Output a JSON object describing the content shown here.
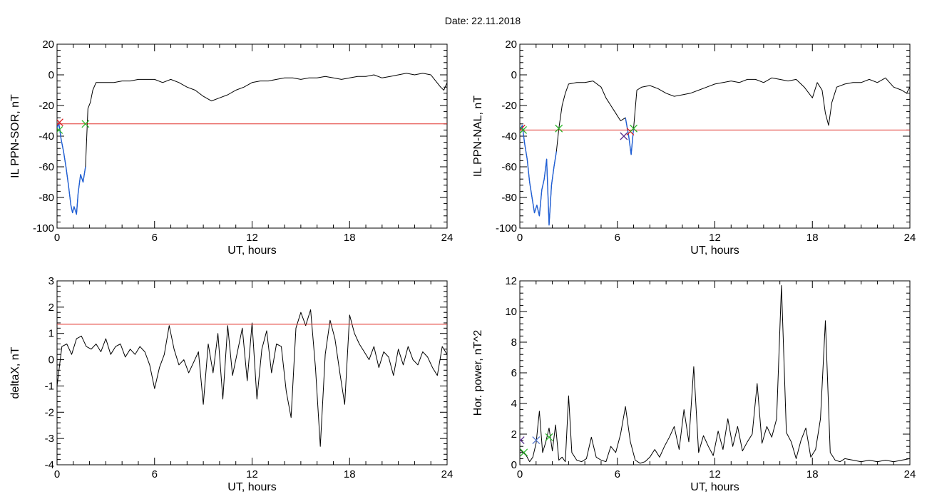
{
  "title": "Date:  22.11.2018",
  "colors": {
    "trace": "#000000",
    "highlight": "#1f5fd6",
    "threshold": "#e0302a",
    "marker_green": "#2db82d",
    "marker_red": "#d81e1e",
    "marker_blue": "#5577cc",
    "marker_purple": "#5a2d8c"
  },
  "chart_data": [
    {
      "type": "line",
      "ylabel": "IL PPN-SOR, nT",
      "xlabel": "UT, hours",
      "xlim": [
        0,
        24
      ],
      "ylim": [
        -100,
        20
      ],
      "xticks": [
        0,
        6,
        12,
        18,
        24
      ],
      "yticks": [
        -100,
        -80,
        -60,
        -40,
        -20,
        0,
        20
      ],
      "threshold": -32,
      "series": [
        {
          "role": "trace",
          "x": [
            0,
            0.1,
            0.25,
            0.4,
            0.55,
            0.7,
            0.85,
            0.95,
            1.05,
            1.2,
            1.3,
            1.45,
            1.6,
            1.75,
            1.9,
            2.05,
            2.2,
            2.4,
            2.6,
            3,
            3.5,
            4,
            4.5,
            5,
            5.5,
            6,
            6.5,
            7,
            7.5,
            8,
            8.5,
            9,
            9.5,
            10,
            10.5,
            11,
            11.5,
            12,
            12.5,
            13,
            13.5,
            14,
            14.5,
            15,
            15.5,
            16,
            16.5,
            17,
            17.5,
            18,
            18.5,
            19,
            19.5,
            20,
            20.5,
            21,
            21.5,
            22,
            22.5,
            23,
            23.3,
            23.6,
            23.8,
            24
          ],
          "y": [
            -35,
            -31,
            -42,
            -50,
            -60,
            -72,
            -85,
            -90,
            -86,
            -91,
            -77,
            -65,
            -70,
            -60,
            -22,
            -18,
            -10,
            -5,
            -5,
            -5,
            -5,
            -4,
            -4,
            -3,
            -3,
            -3,
            -5,
            -3,
            -5,
            -8,
            -10,
            -14,
            -17,
            -15,
            -13,
            -10,
            -8,
            -5,
            -4,
            -4,
            -3,
            -2,
            -2,
            -3,
            -2,
            -2,
            -1,
            -2,
            -3,
            -2,
            -1,
            -1,
            0,
            -2,
            -1,
            0,
            1,
            0,
            1,
            0,
            -4,
            -8,
            -10,
            -5
          ]
        },
        {
          "role": "highlight",
          "x": [
            0,
            0.1,
            0.25,
            0.4,
            0.55,
            0.7,
            0.85,
            0.95,
            1.05,
            1.2,
            1.3,
            1.45,
            1.6,
            1.75
          ],
          "y": [
            -35,
            -31,
            -42,
            -50,
            -60,
            -72,
            -85,
            -90,
            -86,
            -91,
            -77,
            -65,
            -70,
            -60
          ]
        }
      ],
      "markers": [
        {
          "x": 0.15,
          "y": -31,
          "color": "red"
        },
        {
          "x": 0.12,
          "y": -36,
          "color": "green"
        },
        {
          "x": 1.75,
          "y": -32,
          "color": "green"
        }
      ]
    },
    {
      "type": "line",
      "ylabel": "IL PPN-NAL, nT",
      "xlabel": "UT, hours",
      "xlim": [
        0,
        24
      ],
      "ylim": [
        -100,
        20
      ],
      "xticks": [
        0,
        6,
        12,
        18,
        24
      ],
      "yticks": [
        -100,
        -80,
        -60,
        -40,
        -20,
        0,
        20
      ],
      "threshold": -36,
      "series": [
        {
          "role": "trace",
          "x": [
            0,
            0.15,
            0.3,
            0.45,
            0.6,
            0.75,
            0.9,
            1.05,
            1.2,
            1.35,
            1.5,
            1.65,
            1.8,
            1.95,
            2.1,
            2.25,
            2.4,
            2.6,
            2.8,
            3,
            3.5,
            4,
            4.5,
            5,
            5.3,
            5.6,
            5.9,
            6.2,
            6.5,
            6.7,
            6.85,
            7,
            7.2,
            7.5,
            8,
            8.5,
            9,
            9.5,
            10,
            10.5,
            11,
            11.5,
            12,
            12.5,
            13,
            13.5,
            14,
            14.5,
            15,
            15.5,
            16,
            16.5,
            17,
            17.5,
            18,
            18.3,
            18.6,
            18.8,
            19,
            19.2,
            19.5,
            20,
            20.5,
            21,
            21.5,
            22,
            22.5,
            23,
            23.5,
            23.8,
            24
          ],
          "y": [
            -36,
            -33,
            -45,
            -55,
            -70,
            -80,
            -90,
            -85,
            -92,
            -75,
            -68,
            -55,
            -98,
            -72,
            -60,
            -50,
            -35,
            -20,
            -12,
            -6,
            -5,
            -5,
            -4,
            -8,
            -15,
            -20,
            -25,
            -30,
            -28,
            -40,
            -52,
            -35,
            -10,
            -8,
            -7,
            -9,
            -12,
            -14,
            -13,
            -12,
            -10,
            -8,
            -6,
            -5,
            -4,
            -5,
            -3,
            -3,
            -5,
            -2,
            -3,
            -4,
            -3,
            -8,
            -15,
            -5,
            -10,
            -25,
            -33,
            -18,
            -8,
            -6,
            -5,
            -5,
            -3,
            -5,
            -2,
            -8,
            -10,
            -12,
            -8
          ]
        },
        {
          "role": "highlight",
          "x": [
            0,
            0.15,
            0.3,
            0.45,
            0.6,
            0.75,
            0.9,
            1.05,
            1.2,
            1.35,
            1.5,
            1.65,
            1.8,
            1.95,
            2.1,
            2.25
          ],
          "y": [
            -36,
            -33,
            -45,
            -55,
            -70,
            -80,
            -90,
            -85,
            -92,
            -75,
            -68,
            -55,
            -98,
            -72,
            -60,
            -50
          ]
        },
        {
          "role": "highlight",
          "x": [
            6.5,
            6.7,
            6.85,
            7
          ],
          "y": [
            -28,
            -40,
            -52,
            -35
          ]
        }
      ],
      "markers": [
        {
          "x": 0.1,
          "y": -35,
          "color": "red"
        },
        {
          "x": 0.2,
          "y": -36,
          "color": "green"
        },
        {
          "x": 2.4,
          "y": -35,
          "color": "green"
        },
        {
          "x": 6.4,
          "y": -40,
          "color": "purple"
        },
        {
          "x": 6.8,
          "y": -37,
          "color": "red"
        },
        {
          "x": 7.0,
          "y": -35,
          "color": "green"
        }
      ]
    },
    {
      "type": "line",
      "ylabel": "deltaX, nT",
      "xlabel": "UT, hours",
      "xlim": [
        0,
        24
      ],
      "ylim": [
        -4,
        3
      ],
      "xticks": [
        0,
        6,
        12,
        18,
        24
      ],
      "yticks": [
        -4,
        -3,
        -2,
        -1,
        0,
        1,
        2,
        3
      ],
      "threshold": 1.35,
      "series": [
        {
          "role": "trace",
          "x": [
            0,
            0.3,
            0.6,
            0.9,
            1.2,
            1.5,
            1.8,
            2.1,
            2.4,
            2.7,
            3,
            3.3,
            3.6,
            3.9,
            4.2,
            4.5,
            4.8,
            5.1,
            5.4,
            5.7,
            6,
            6.3,
            6.6,
            6.9,
            7.2,
            7.5,
            7.8,
            8.1,
            8.4,
            8.7,
            9,
            9.3,
            9.6,
            9.9,
            10.2,
            10.5,
            10.8,
            11.1,
            11.4,
            11.7,
            12,
            12.3,
            12.6,
            12.9,
            13.2,
            13.5,
            13.8,
            14.1,
            14.4,
            14.7,
            15,
            15.3,
            15.6,
            15.9,
            16.2,
            16.5,
            16.8,
            17.1,
            17.4,
            17.7,
            18,
            18.3,
            18.6,
            18.9,
            19.2,
            19.5,
            19.8,
            20.1,
            20.4,
            20.7,
            21,
            21.3,
            21.6,
            21.9,
            22.2,
            22.5,
            22.8,
            23.1,
            23.4,
            23.7,
            24
          ],
          "y": [
            -1,
            0.5,
            0.6,
            0.2,
            0.8,
            0.9,
            0.5,
            0.4,
            0.6,
            0.3,
            0.8,
            0.2,
            0.5,
            0.6,
            0.1,
            0.4,
            0.2,
            0.5,
            0.3,
            -0.2,
            -1.1,
            -0.3,
            0.2,
            1.3,
            0.4,
            -0.2,
            0.0,
            -0.5,
            -0.1,
            0.3,
            -1.7,
            0.6,
            -0.5,
            1.0,
            -1.5,
            1.3,
            -0.6,
            0.3,
            1.2,
            -0.8,
            1.4,
            -1.5,
            0.4,
            1.1,
            -0.5,
            0.6,
            0.5,
            -1.2,
            -2.2,
            1.2,
            1.8,
            1.3,
            1.9,
            -0.3,
            -3.3,
            0.2,
            1.5,
            0.8,
            -0.5,
            -1.7,
            1.7,
            1.0,
            0.6,
            0.3,
            0.0,
            0.5,
            -0.3,
            0.3,
            0.1,
            -0.6,
            0.4,
            -0.2,
            0.5,
            0.0,
            -0.2,
            0.3,
            0.1,
            -0.3,
            -0.6,
            0.5,
            0.2
          ]
        }
      ],
      "markers": []
    },
    {
      "type": "line",
      "ylabel": "Hor. power, nT^2",
      "xlabel": "UT, hours",
      "xlim": [
        0,
        24
      ],
      "ylim": [
        0,
        12
      ],
      "xticks": [
        0,
        6,
        12,
        18,
        24
      ],
      "yticks": [
        0,
        2,
        4,
        6,
        8,
        10,
        12
      ],
      "threshold": null,
      "series": [
        {
          "role": "trace",
          "x": [
            0,
            0.2,
            0.4,
            0.6,
            0.8,
            1,
            1.2,
            1.4,
            1.6,
            1.8,
            2,
            2.2,
            2.4,
            2.6,
            2.8,
            3,
            3.2,
            3.5,
            3.8,
            4.1,
            4.4,
            4.7,
            5,
            5.3,
            5.6,
            5.9,
            6.2,
            6.5,
            6.8,
            7.1,
            7.4,
            7.7,
            8,
            8.3,
            8.6,
            8.9,
            9.2,
            9.5,
            9.8,
            10.1,
            10.4,
            10.7,
            11,
            11.3,
            11.6,
            11.9,
            12.2,
            12.5,
            12.8,
            13.1,
            13.4,
            13.7,
            14,
            14.3,
            14.6,
            14.9,
            15.2,
            15.5,
            15.8,
            16.1,
            16.4,
            16.7,
            17,
            17.3,
            17.6,
            17.9,
            18.2,
            18.5,
            18.8,
            19.1,
            19.4,
            19.7,
            20,
            20.5,
            21,
            21.5,
            22,
            22.5,
            23,
            23.5,
            24
          ],
          "y": [
            1,
            0.8,
            0.6,
            0.2,
            0.5,
            1.4,
            3.5,
            0.8,
            1.5,
            2.4,
            0.9,
            2.6,
            0.3,
            0.5,
            0.2,
            4.5,
            0.8,
            0.3,
            0.2,
            0.4,
            1.8,
            0.5,
            0.3,
            0.2,
            1.2,
            0.8,
            2.0,
            3.8,
            1.5,
            0.3,
            0.1,
            0.2,
            0.5,
            1.0,
            0.5,
            1.2,
            1.8,
            2.5,
            1.0,
            3.6,
            1.5,
            6.4,
            0.8,
            1.9,
            1.2,
            0.6,
            2.2,
            1.0,
            3.0,
            1.2,
            2.5,
            0.9,
            1.5,
            2.0,
            5.3,
            1.4,
            2.5,
            1.8,
            3.0,
            11.7,
            2.1,
            1.5,
            0.4,
            1.6,
            2.4,
            0.5,
            1.0,
            3.0,
            9.4,
            0.8,
            0.3,
            0.2,
            0.4,
            0.3,
            0.2,
            0.3,
            0.2,
            0.3,
            0.2,
            0.3,
            0.4
          ]
        }
      ],
      "markers": [
        {
          "x": 0.05,
          "y": 1.6,
          "color": "purple"
        },
        {
          "x": 0.25,
          "y": 0.8,
          "color": "green"
        },
        {
          "x": 1.0,
          "y": 1.6,
          "color": "blue"
        },
        {
          "x": 1.8,
          "y": 1.8,
          "color": "green"
        }
      ]
    }
  ]
}
